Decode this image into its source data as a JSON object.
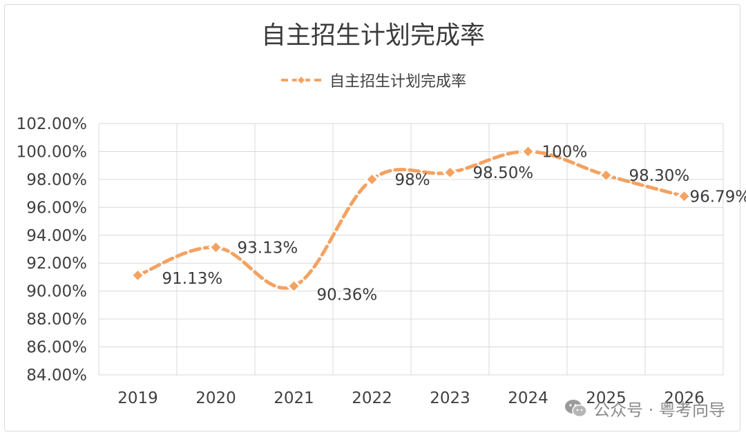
{
  "chart_data": {
    "type": "line",
    "title": "自主招生计划完成率",
    "categories": [
      "2019",
      "2020",
      "2021",
      "2022",
      "2023",
      "2024",
      "2025",
      "2026"
    ],
    "series": [
      {
        "name": "自主招生计划完成率",
        "values": [
          91.13,
          93.13,
          90.36,
          98.0,
          98.5,
          100.0,
          98.3,
          96.79
        ],
        "data_labels": [
          "91.13%",
          "93.13%",
          "90.36%",
          "98%",
          "98.50%",
          "100%",
          "98.30%",
          "96.79%"
        ],
        "color": "#f4a261"
      }
    ],
    "y_ticks": [
      "84.00%",
      "86.00%",
      "88.00%",
      "90.00%",
      "92.00%",
      "94.00%",
      "96.00%",
      "98.00%",
      "100.00%",
      "102.00%"
    ],
    "ylim": [
      84,
      102
    ],
    "y_step": 2,
    "grid": true,
    "legend_position": "top",
    "line_style": "dashed-smooth",
    "marker": "diamond"
  },
  "watermark": {
    "text": "公众号 · 粤考向导",
    "icon": "wechat-icon"
  }
}
